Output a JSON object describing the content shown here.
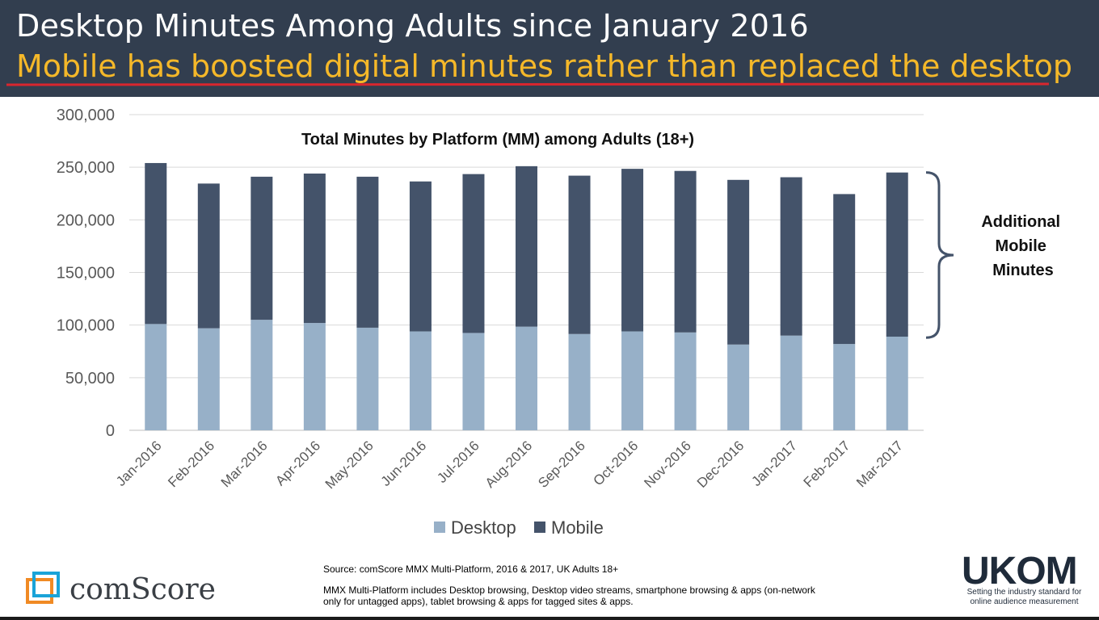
{
  "header": {
    "title": "Desktop Minutes Among Adults since January 2016",
    "subtitle": "Mobile has boosted digital minutes rather than replaced the desktop"
  },
  "colors": {
    "header_bg": "#323e4f",
    "subtitle": "#f5b829",
    "underline": "#d9262e",
    "desktop": "#97b0c8",
    "mobile": "#44536a"
  },
  "chart_data": {
    "type": "bar",
    "stacked": true,
    "title": "Total Minutes by Platform (MM) among Adults (18+)",
    "categories": [
      "Jan-2016",
      "Feb-2016",
      "Mar-2016",
      "Apr-2016",
      "May-2016",
      "Jun-2016",
      "Jul-2016",
      "Aug-2016",
      "Sep-2016",
      "Oct-2016",
      "Nov-2016",
      "Dec-2016",
      "Jan-2017",
      "Feb-2017",
      "Mar-2017"
    ],
    "series": [
      {
        "name": "Desktop",
        "values": [
          101000,
          97000,
          105000,
          102000,
          97500,
          94000,
          92500,
          98500,
          91500,
          94000,
          93000,
          81500,
          90000,
          82000,
          89000
        ]
      },
      {
        "name": "Mobile",
        "values": [
          153000,
          137500,
          136000,
          142000,
          143500,
          142500,
          151000,
          152500,
          150500,
          154500,
          153500,
          156500,
          150500,
          142500,
          156000
        ]
      }
    ],
    "ylim": [
      0,
      300000
    ],
    "yticks": [
      "300,000",
      "250,000",
      "200,000",
      "150,000",
      "100,000",
      "50,000",
      "0"
    ],
    "ytick_values": [
      300000,
      250000,
      200000,
      150000,
      100000,
      50000,
      0
    ],
    "grid": true,
    "legend": [
      "Desktop",
      "Mobile"
    ],
    "legend_position": "bottom",
    "annotation": {
      "lines": [
        "Additional",
        "Mobile",
        "Minutes"
      ],
      "brace_from": 88000,
      "brace_to": 245000
    }
  },
  "footer": {
    "source": "Source: comScore MMX Multi-Platform,  2016 & 2017, UK Adults 18+",
    "note": "MMX Multi-Platform includes Desktop browsing, Desktop video streams, smartphone browsing & apps (on-network only for untagged apps), tablet browsing & apps for tagged sites & apps.",
    "comscore_logo_text": "comScore",
    "ukom_logo_text": "UKOM",
    "ukom_tagline": "Setting the industry standard for online audience measurement"
  }
}
